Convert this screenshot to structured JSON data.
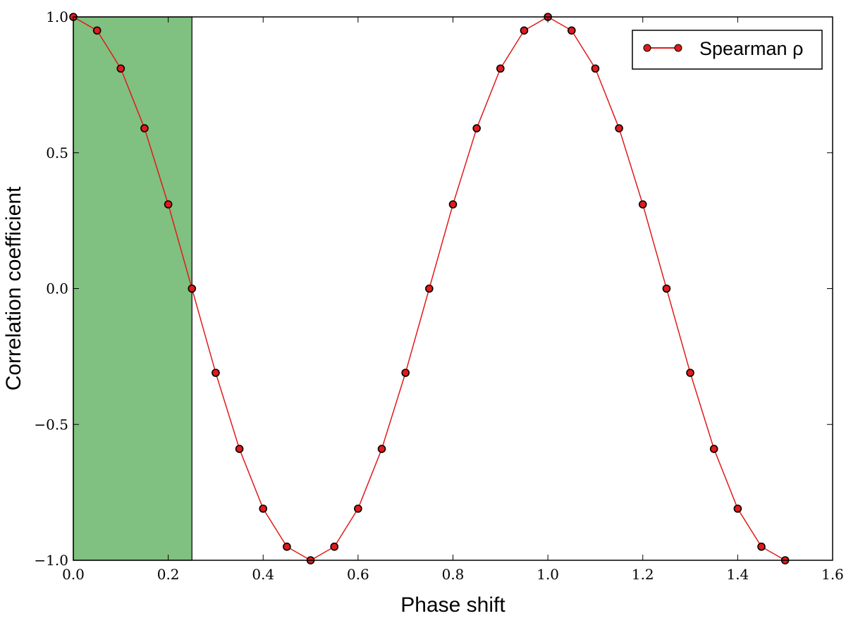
{
  "chart_data": {
    "type": "scatter",
    "title": "",
    "xlabel": "Phase shift",
    "ylabel": "Correlation coefficient",
    "xlim": [
      0.0,
      1.6
    ],
    "ylim": [
      -1.0,
      1.0
    ],
    "xticks": [
      0.0,
      0.2,
      0.4,
      0.6,
      0.8,
      1.0,
      1.2,
      1.4,
      1.6
    ],
    "xtick_labels": [
      "0.0",
      "0.2",
      "0.4",
      "0.6",
      "0.8",
      "1.0",
      "1.2",
      "1.4",
      "1.6"
    ],
    "yticks": [
      -1.0,
      -0.5,
      0.0,
      0.5,
      1.0
    ],
    "ytick_labels": [
      "−1.0",
      "−0.5",
      "0.0",
      "0.5",
      "1.0"
    ],
    "grid": false,
    "legend_position": "top-right",
    "shaded_region": {
      "x_start": 0.0,
      "x_end": 0.25,
      "color": "#80c080"
    },
    "series": [
      {
        "name": "Spearman ρ",
        "marker_color": "#e01b1b",
        "edge_color": "#000000",
        "line_color": "#e01b1b",
        "x": [
          0.0,
          0.05,
          0.1,
          0.15,
          0.2,
          0.25,
          0.3,
          0.35,
          0.4,
          0.45,
          0.5,
          0.55,
          0.6,
          0.65,
          0.7,
          0.75,
          0.8,
          0.85,
          0.9,
          0.95,
          1.0,
          1.05,
          1.1,
          1.15,
          1.2,
          1.25,
          1.3,
          1.35,
          1.4,
          1.45,
          1.5
        ],
        "y": [
          1.0,
          0.95,
          0.81,
          0.59,
          0.31,
          0.0,
          -0.31,
          -0.59,
          -0.81,
          -0.95,
          -1.0,
          -0.95,
          -0.81,
          -0.59,
          -0.31,
          0.0,
          0.31,
          0.59,
          0.81,
          0.95,
          1.0,
          0.95,
          0.81,
          0.59,
          0.31,
          0.0,
          -0.31,
          -0.59,
          -0.81,
          -0.95,
          -1.0
        ]
      }
    ]
  }
}
